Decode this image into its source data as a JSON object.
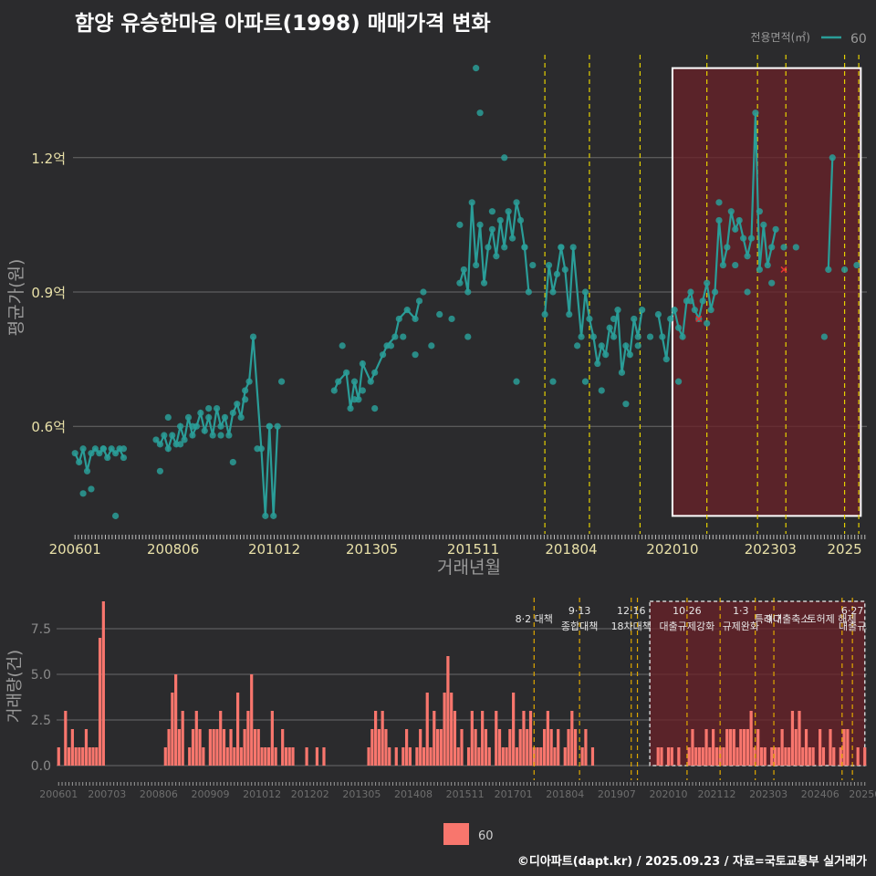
{
  "title": "함양 유승한마음 아파트(1998) 매매가격 변화",
  "footer": "©디아파트(dapt.kr) / 2025.09.23 / 자료=국토교통부 실거래가",
  "colors": {
    "background": "#2b2b2d",
    "price_line": "#2a9d98",
    "volume_bar": "#f8766d",
    "policy_line": "#e6d200",
    "policy_line_volume": "#e0a800",
    "highlight_fill": "#6b2228",
    "cancel_mark": "#e03030"
  },
  "chart_data": [
    {
      "type": "line",
      "xlabel": "거래년월",
      "ylabel": "평균가(원)",
      "y_ticks": [
        {
          "value": 0.6,
          "label": "0.6억"
        },
        {
          "value": 0.9,
          "label": "0.9억"
        },
        {
          "value": 1.2,
          "label": "1.2억"
        }
      ],
      "x_ticks": [
        {
          "value": 2006.0,
          "label": "200601"
        },
        {
          "value": 2008.42,
          "label": "200806"
        },
        {
          "value": 2010.92,
          "label": "201012"
        },
        {
          "value": 2013.33,
          "label": "201305"
        },
        {
          "value": 2015.83,
          "label": "201511"
        },
        {
          "value": 2018.25,
          "label": "201804"
        },
        {
          "value": 2020.75,
          "label": "202010"
        },
        {
          "value": 2023.17,
          "label": "202303"
        },
        {
          "value": 2025.0,
          "label": "2025"
        }
      ],
      "legend_title": "전용면적(㎡)",
      "series": [
        {
          "name": "60",
          "x": [
            2006.0,
            2006.1,
            2006.2,
            2006.3,
            2006.4,
            2006.5,
            2006.6,
            2006.7,
            2006.8,
            2006.9,
            2007.0,
            2007.1,
            2007.2,
            2008.0,
            2008.1,
            2008.2,
            2008.3,
            2008.4,
            2008.5,
            2008.6,
            2008.7,
            2008.8,
            2008.9,
            2009.0,
            2009.1,
            2009.2,
            2009.3,
            2009.4,
            2009.5,
            2009.6,
            2009.7,
            2009.8,
            2009.9,
            2010.0,
            2010.1,
            2010.2,
            2010.3,
            2010.4,
            2010.6,
            2010.7,
            2010.8,
            2010.9,
            2011.0,
            2012.4,
            2012.5,
            2012.7,
            2012.8,
            2012.9,
            2013.0,
            2013.1,
            2013.3,
            2013.4,
            2013.6,
            2013.7,
            2013.9,
            2014.0,
            2014.2,
            2014.4,
            2014.5,
            2015.5,
            2015.6,
            2015.7,
            2015.8,
            2015.9,
            2016.0,
            2016.1,
            2016.2,
            2016.3,
            2016.4,
            2016.5,
            2016.6,
            2016.7,
            2016.8,
            2016.9,
            2017.0,
            2017.1,
            2017.2,
            2017.6,
            2017.7,
            2017.8,
            2017.9,
            2018.0,
            2018.1,
            2018.2,
            2018.3,
            2018.5,
            2018.6,
            2018.7,
            2018.8,
            2018.9,
            2019.0,
            2019.1,
            2019.2,
            2019.3,
            2019.4,
            2019.5,
            2019.6,
            2019.7,
            2019.8,
            2019.9,
            2020.0,
            2020.4,
            2020.5,
            2020.6,
            2020.7,
            2020.8,
            2020.9,
            2021.0,
            2021.1,
            2021.2,
            2021.3,
            2021.4,
            2021.5,
            2021.6,
            2021.7,
            2021.8,
            2021.9,
            2022.0,
            2022.1,
            2022.2,
            2022.3,
            2022.4,
            2022.5,
            2022.6,
            2022.7,
            2022.8,
            2022.9,
            2023.0,
            2023.1,
            2023.2,
            2023.3,
            2024.6,
            2024.7
          ],
          "values": [
            0.54,
            0.52,
            0.55,
            0.5,
            0.54,
            0.55,
            0.54,
            0.55,
            0.53,
            0.55,
            0.54,
            0.55,
            0.53,
            0.57,
            0.56,
            0.58,
            0.55,
            0.58,
            0.56,
            0.6,
            0.57,
            0.62,
            0.58,
            0.6,
            0.63,
            0.59,
            0.62,
            0.58,
            0.64,
            0.6,
            0.62,
            0.58,
            0.63,
            0.65,
            0.62,
            0.68,
            0.7,
            0.8,
            0.55,
            0.4,
            0.6,
            0.4,
            0.6,
            0.68,
            0.7,
            0.72,
            0.64,
            0.7,
            0.66,
            0.74,
            0.7,
            0.72,
            0.76,
            0.78,
            0.8,
            0.84,
            0.86,
            0.84,
            0.88,
            0.92,
            0.95,
            0.9,
            1.1,
            0.96,
            1.05,
            0.92,
            1.0,
            1.04,
            0.98,
            1.06,
            1.0,
            1.08,
            1.02,
            1.1,
            1.06,
            1.0,
            0.9,
            0.85,
            0.96,
            0.9,
            0.94,
            1.0,
            0.95,
            0.85,
            1.0,
            0.8,
            0.9,
            0.84,
            0.8,
            0.74,
            0.78,
            0.76,
            0.82,
            0.8,
            0.86,
            0.72,
            0.78,
            0.76,
            0.84,
            0.8,
            0.86,
            0.85,
            0.8,
            0.75,
            0.84,
            0.86,
            0.82,
            0.8,
            0.88,
            0.9,
            0.86,
            0.84,
            0.88,
            0.92,
            0.86,
            0.9,
            1.06,
            0.96,
            1.0,
            1.08,
            1.04,
            1.06,
            1.02,
            0.98,
            1.02,
            1.3,
            0.95,
            1.05,
            0.96,
            1.0,
            1.04,
            0.95,
            1.2
          ]
        }
      ],
      "scatter_points": {
        "x": [
          2006.2,
          2006.4,
          2006.7,
          2007.0,
          2007.2,
          2008.1,
          2008.3,
          2008.6,
          2008.9,
          2009.3,
          2009.6,
          2009.9,
          2010.2,
          2010.5,
          2010.8,
          2011.1,
          2012.6,
          2012.9,
          2013.1,
          2013.4,
          2013.8,
          2014.1,
          2014.4,
          2014.6,
          2014.8,
          2015.0,
          2015.3,
          2015.5,
          2015.7,
          2015.9,
          2016.0,
          2016.3,
          2016.6,
          2016.9,
          2017.1,
          2017.3,
          2017.8,
          2018.0,
          2018.4,
          2018.6,
          2019.0,
          2019.3,
          2019.6,
          2019.9,
          2020.2,
          2020.9,
          2021.2,
          2021.6,
          2021.9,
          2022.3,
          2022.6,
          2022.9,
          2023.2,
          2023.5,
          2023.8,
          2024.5,
          2025.0,
          2025.3
        ],
        "values": [
          0.45,
          0.46,
          0.55,
          0.4,
          0.55,
          0.5,
          0.62,
          0.56,
          0.6,
          0.64,
          0.58,
          0.52,
          0.66,
          0.55,
          0.6,
          0.7,
          0.78,
          0.66,
          0.68,
          0.64,
          0.78,
          0.8,
          0.76,
          0.9,
          0.78,
          0.85,
          0.84,
          1.05,
          0.8,
          1.4,
          1.3,
          1.08,
          1.2,
          0.7,
          1.0,
          0.96,
          0.7,
          1.0,
          0.78,
          0.7,
          0.68,
          0.84,
          0.65,
          0.78,
          0.8,
          0.7,
          0.88,
          0.83,
          1.1,
          0.96,
          0.9,
          1.08,
          0.92,
          1.0,
          1.0,
          0.8,
          0.95,
          0.96
        ]
      },
      "cancel_marks": {
        "x": [
          2021.4,
          2023.5
        ],
        "values": [
          0.84,
          0.95
        ]
      },
      "policy_lines_x": [
        2017.6,
        2018.7,
        2019.95,
        2021.6,
        2022.85,
        2023.55,
        2025.0,
        2025.35
      ],
      "highlight_range": {
        "x": [
          2020.75,
          2025.4
        ],
        "y": [
          0.4,
          1.4
        ]
      },
      "ylim": [
        0.36,
        1.44
      ],
      "xlim": [
        2005.95,
        2025.55
      ]
    },
    {
      "type": "bar",
      "ylabel": "거래량(건)",
      "y_ticks": [
        {
          "value": 0,
          "label": "0.0"
        },
        {
          "value": 2.5,
          "label": "2.5"
        },
        {
          "value": 5,
          "label": "5.0"
        },
        {
          "value": 7.5,
          "label": "7.5"
        }
      ],
      "x_ticks": [
        {
          "value": 2006.0,
          "label": "200601"
        },
        {
          "value": 2007.17,
          "label": "200703"
        },
        {
          "value": 2008.42,
          "label": "200806"
        },
        {
          "value": 2009.67,
          "label": "200909"
        },
        {
          "value": 2010.92,
          "label": "201012"
        },
        {
          "value": 2012.08,
          "label": "201202"
        },
        {
          "value": 2013.33,
          "label": "201305"
        },
        {
          "value": 2014.58,
          "label": "201408"
        },
        {
          "value": 2015.83,
          "label": "201511"
        },
        {
          "value": 2017.0,
          "label": "201701"
        },
        {
          "value": 2018.25,
          "label": "201804"
        },
        {
          "value": 2019.5,
          "label": "201907"
        },
        {
          "value": 2020.75,
          "label": "202010"
        },
        {
          "value": 2021.92,
          "label": "202112"
        },
        {
          "value": 2023.17,
          "label": "202303"
        },
        {
          "value": 2024.42,
          "label": "202406"
        },
        {
          "value": 2025.5,
          "label": "20250"
        }
      ],
      "legend_entry": "60",
      "policy_lines_x": [
        2017.5,
        2018.6,
        2019.85,
        2020.0,
        2021.2,
        2022.0,
        2022.85,
        2023.3,
        2024.95,
        2025.2
      ],
      "highlight_range": {
        "x": [
          2020.3,
          2025.5
        ],
        "y": [
          0,
          9.0
        ]
      },
      "ylim": [
        -0.8,
        9.2
      ],
      "annotations": [
        {
          "x": 2017.5,
          "line1": "",
          "line2": "8·2 대책"
        },
        {
          "x": 2018.6,
          "line1": "9·13",
          "line2": "종합대책"
        },
        {
          "x": 2019.85,
          "line1": "12·16",
          "line2": "18차대책"
        },
        {
          "x": 2021.2,
          "line1": "10·26",
          "line2": "대출규제강화"
        },
        {
          "x": 2022.5,
          "line1": "1·3",
          "line2": "규제완화"
        },
        {
          "x": 2023.3,
          "line1": "",
          "line2": "9·7"
        },
        {
          "x": 2023.5,
          "line1": "",
          "line2": "특례대출축소"
        },
        {
          "x": 2024.7,
          "line1": "",
          "line2": "토허제 해제"
        },
        {
          "x": 2025.2,
          "line1": "6·27",
          "line2": "대출규"
        }
      ],
      "counts": [
        1,
        0,
        3,
        1,
        2,
        1,
        1,
        1,
        2,
        1,
        1,
        1,
        7,
        9,
        0,
        0,
        0,
        0,
        0,
        0,
        0,
        0,
        0,
        0,
        0,
        0,
        0,
        0,
        0,
        0,
        0,
        1,
        2,
        4,
        5,
        2,
        3,
        0,
        1,
        2,
        3,
        2,
        1,
        0,
        2,
        2,
        2,
        3,
        2,
        1,
        2,
        1,
        4,
        1,
        2,
        3,
        5,
        2,
        2,
        1,
        1,
        1,
        3,
        1,
        0,
        2,
        1,
        1,
        1,
        0,
        0,
        0,
        1,
        0,
        0,
        1,
        0,
        1,
        0,
        0,
        0,
        0,
        0,
        0,
        0,
        0,
        0,
        0,
        0,
        0,
        1,
        2,
        3,
        2,
        3,
        2,
        1,
        0,
        1,
        0,
        1,
        2,
        1,
        0,
        1,
        2,
        1,
        4,
        1,
        3,
        2,
        2,
        4,
        6,
        4,
        3,
        1,
        2,
        0,
        1,
        3,
        2,
        1,
        3,
        2,
        1,
        0,
        3,
        2,
        1,
        1,
        2,
        4,
        1,
        2,
        3,
        2,
        3,
        1,
        1,
        1,
        2,
        3,
        2,
        1,
        2,
        0,
        1,
        2,
        3,
        2,
        0,
        1,
        2,
        0,
        1,
        0,
        0,
        0,
        0,
        0,
        0,
        0,
        0,
        0,
        0,
        0,
        0,
        0,
        0,
        0,
        0,
        0,
        0,
        1,
        1,
        0,
        1,
        1,
        0,
        1,
        0,
        0,
        1,
        2,
        1,
        1,
        1,
        2,
        1,
        2,
        1,
        1,
        1,
        2,
        2,
        2,
        1,
        2,
        2,
        2,
        3,
        1,
        2,
        1,
        1,
        0,
        1,
        1,
        1,
        2,
        1,
        1,
        3,
        2,
        3,
        1,
        2,
        1,
        1,
        0,
        2,
        1,
        0,
        2,
        1,
        0,
        1,
        2,
        2,
        0,
        0,
        1,
        0,
        1,
        0,
        1,
        1,
        0,
        0,
        1,
        2,
        1,
        1,
        0,
        1,
        0,
        0,
        0,
        0,
        1,
        0,
        0,
        0,
        0,
        0,
        1,
        1,
        1,
        2,
        1,
        0,
        1,
        1
      ]
    }
  ]
}
